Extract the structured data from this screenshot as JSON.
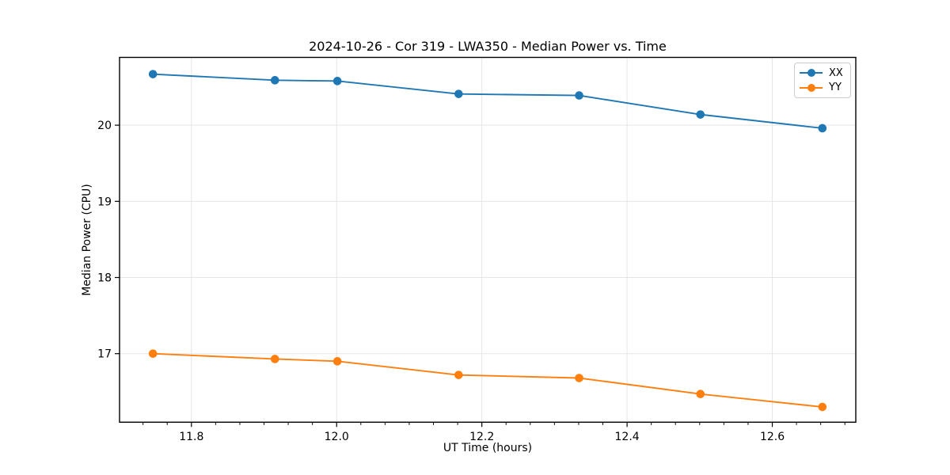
{
  "window": {
    "background": "#ffffff"
  },
  "chart_data": {
    "type": "line",
    "title": "2024-10-26 - Cor 319 - LWA350 - Median Power vs. Time",
    "xlabel": "UT Time (hours)",
    "ylabel": "Median Power (CPU)",
    "xlim": [
      11.701,
      12.715
    ],
    "ylim": [
      16.1,
      20.89
    ],
    "xticks": [
      11.8,
      12.0,
      12.2,
      12.4,
      12.6
    ],
    "xtick_labels": [
      "11.8",
      "12.0",
      "12.2",
      "12.4",
      "12.6"
    ],
    "yticks": [
      17,
      18,
      19,
      20
    ],
    "ytick_labels": [
      "17",
      "18",
      "19",
      "20"
    ],
    "minor_xtick_step": 0.033333,
    "grid": true,
    "grid_color": "#e5e5e5",
    "axis_color": "#000000",
    "legend_position": "upper right",
    "x": [
      11.747,
      11.915,
      12.001,
      12.168,
      12.334,
      12.501,
      12.669
    ],
    "series": [
      {
        "name": "XX",
        "color": "#1f77b4",
        "marker": "o",
        "values": [
          20.67,
          20.59,
          20.58,
          20.41,
          20.39,
          20.14,
          19.96
        ]
      },
      {
        "name": "YY",
        "color": "#ff7f0e",
        "marker": "o",
        "values": [
          17.0,
          16.93,
          16.9,
          16.72,
          16.68,
          16.47,
          16.3
        ]
      }
    ]
  }
}
